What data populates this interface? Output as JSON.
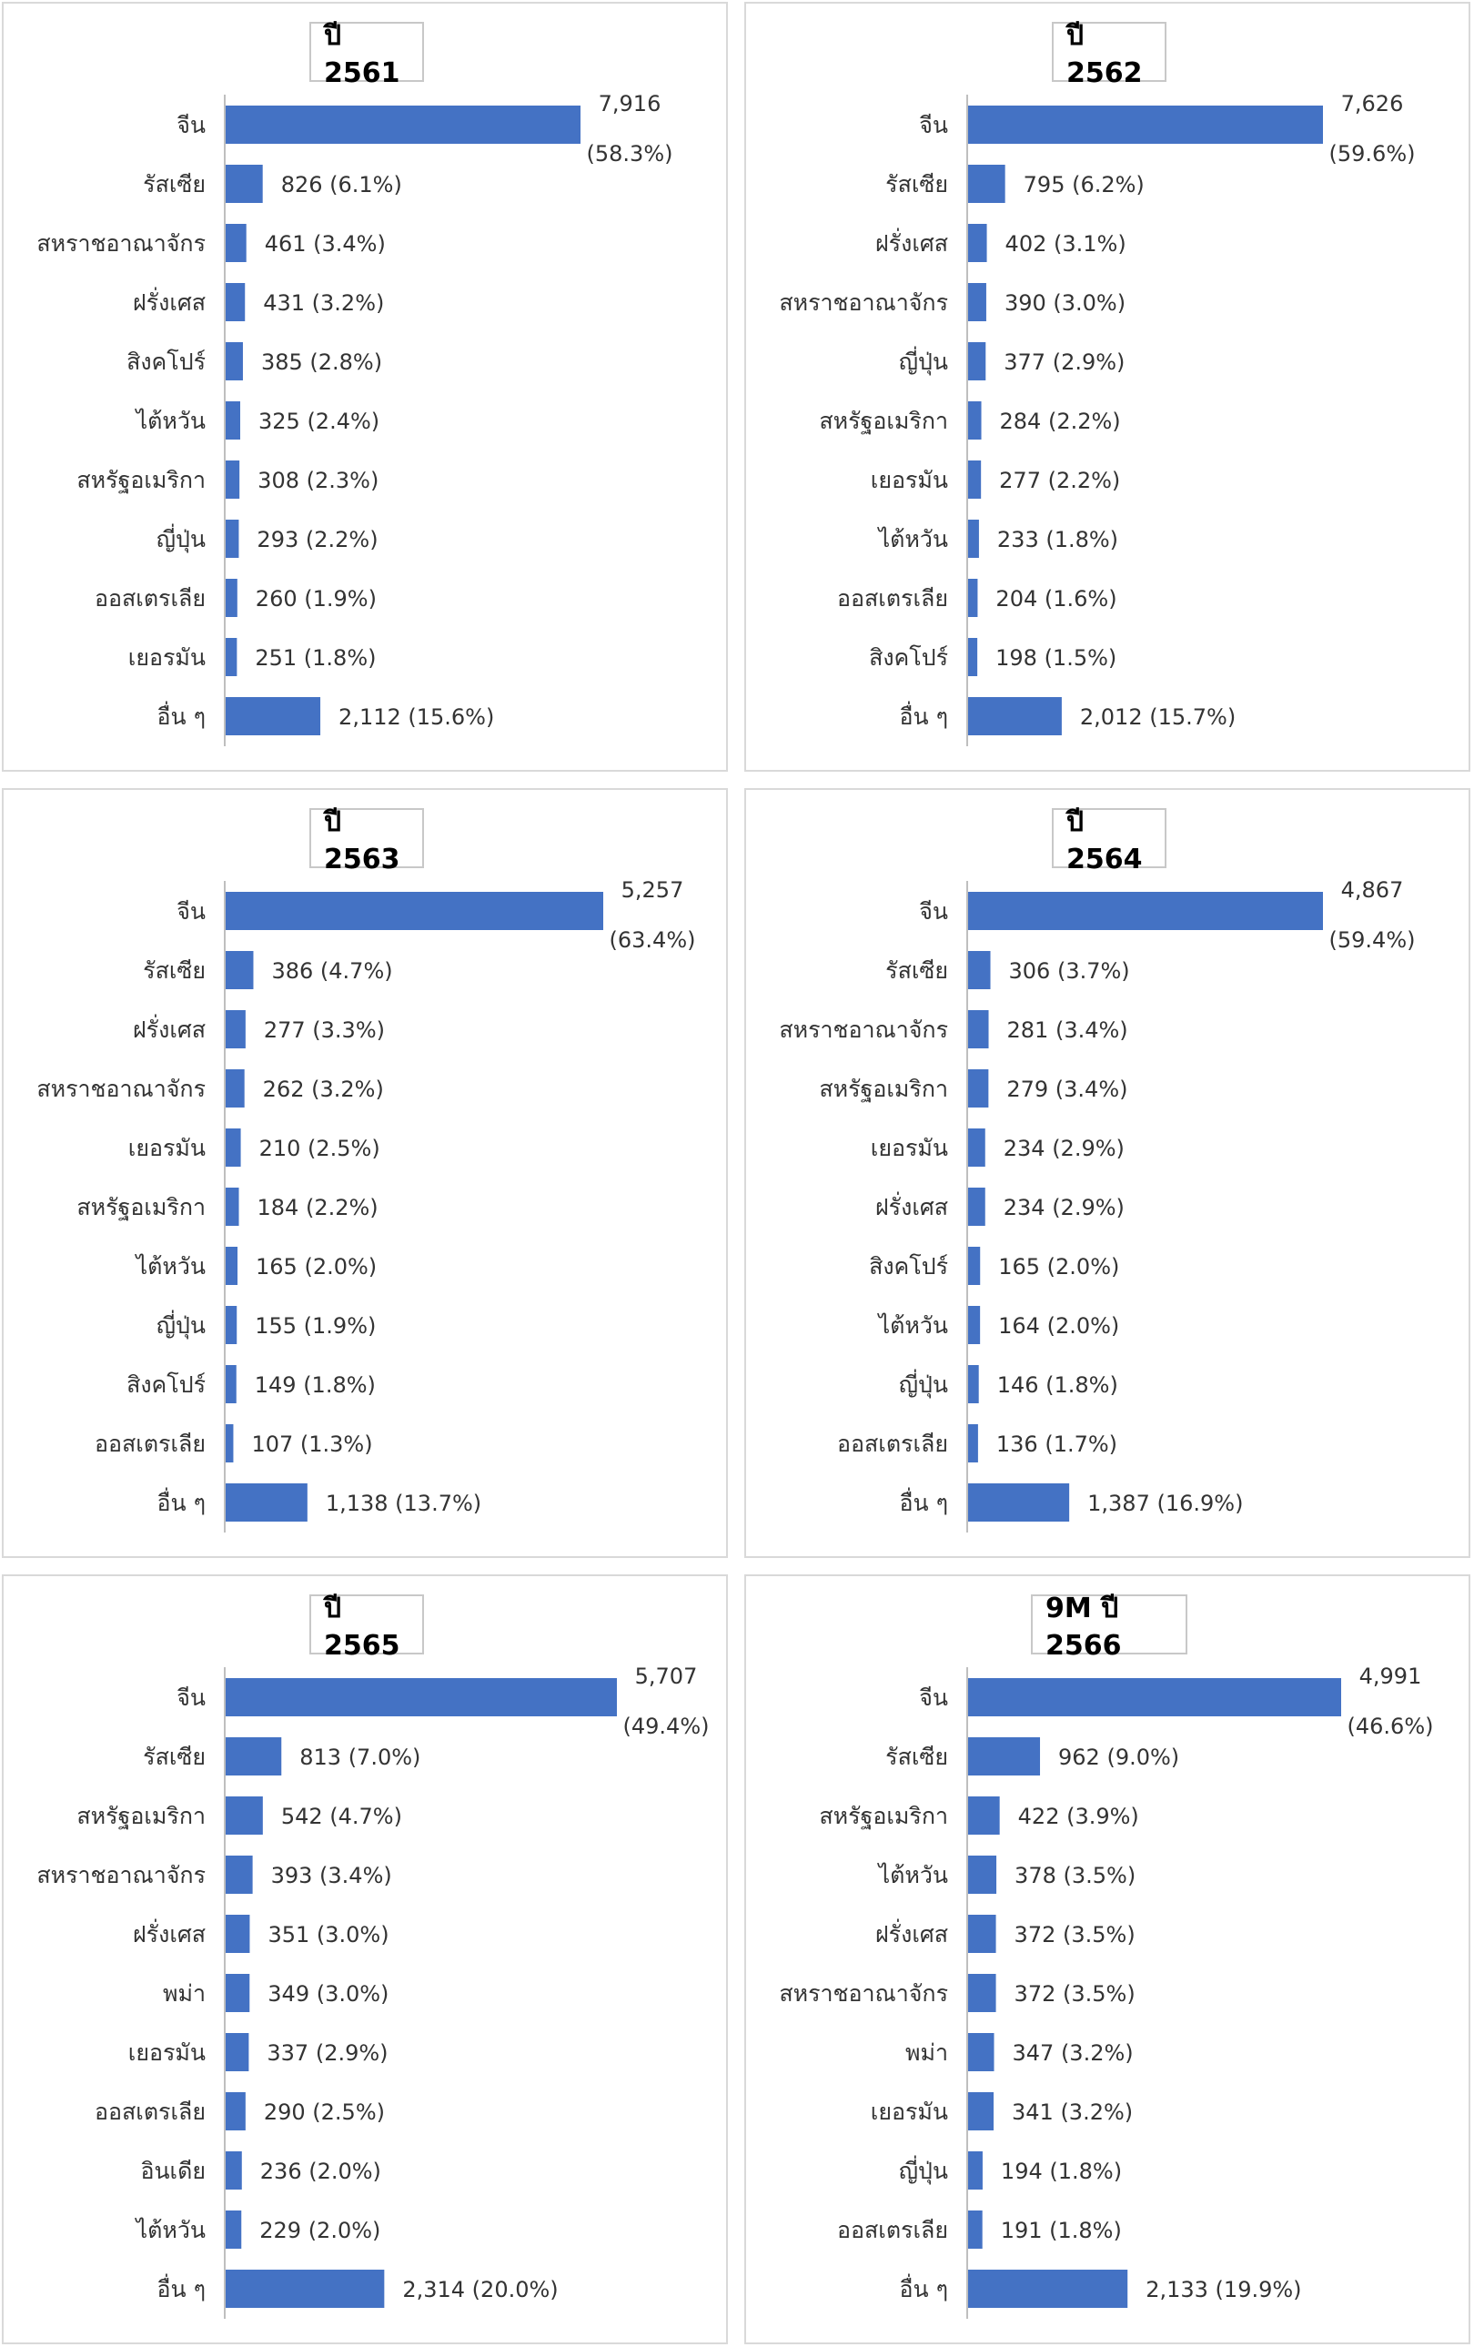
{
  "chart_data": [
    {
      "type": "bar",
      "title": "ปี 2561",
      "categories": [
        "จีน",
        "รัสเซีย",
        "สหราชอาณาจักร",
        "ฝรั่งเศส",
        "สิงคโปร์",
        "ไต้หวัน",
        "สหรัฐอเมริกา",
        "ญี่ปุ่น",
        "ออสเตรเลีย",
        "เยอรมัน",
        "อื่น ๆ"
      ],
      "values": [
        7916,
        826,
        461,
        431,
        385,
        325,
        308,
        293,
        260,
        251,
        2112
      ],
      "labels": [
        "7,916",
        "826 (6.1%)",
        "461 (3.4%)",
        "431 (3.2%)",
        "385 (2.8%)",
        "325 (2.4%)",
        "308 (2.3%)",
        "293 (2.2%)",
        "260 (1.9%)",
        "251 (1.8%)",
        "2,112 (15.6%)"
      ],
      "top_share": "(58.3%)",
      "color": "#4472c4"
    },
    {
      "type": "bar",
      "title": "ปี 2562",
      "categories": [
        "จีน",
        "รัสเซีย",
        "ฝรั่งเศส",
        "สหราชอาณาจักร",
        "ญี่ปุ่น",
        "สหรัฐอเมริกา",
        "เยอรมัน",
        "ไต้หวัน",
        "ออสเตรเลีย",
        "สิงคโปร์",
        "อื่น ๆ"
      ],
      "values": [
        7626,
        795,
        402,
        390,
        377,
        284,
        277,
        233,
        204,
        198,
        2012
      ],
      "labels": [
        "7,626",
        "795 (6.2%)",
        "402 (3.1%)",
        "390 (3.0%)",
        "377 (2.9%)",
        "284 (2.2%)",
        "277 (2.2%)",
        "233 (1.8%)",
        "204 (1.6%)",
        "198 (1.5%)",
        "2,012 (15.7%)"
      ],
      "top_share": "(59.6%)",
      "color": "#4472c4"
    },
    {
      "type": "bar",
      "title": "ปี 2563",
      "categories": [
        "จีน",
        "รัสเซีย",
        "ฝรั่งเศส",
        "สหราชอาณาจักร",
        "เยอรมัน",
        "สหรัฐอเมริกา",
        "ไต้หวัน",
        "ญี่ปุ่น",
        "สิงคโปร์",
        "ออสเตรเลีย",
        "อื่น ๆ"
      ],
      "values": [
        5257,
        386,
        277,
        262,
        210,
        184,
        165,
        155,
        149,
        107,
        1138
      ],
      "labels": [
        "5,257",
        "386 (4.7%)",
        "277 (3.3%)",
        "262 (3.2%)",
        "210 (2.5%)",
        "184 (2.2%)",
        "165 (2.0%)",
        "155 (1.9%)",
        "149 (1.8%)",
        "107 (1.3%)",
        "1,138 (13.7%)"
      ],
      "top_share": "(63.4%)",
      "color": "#4472c4"
    },
    {
      "type": "bar",
      "title": "ปี 2564",
      "categories": [
        "จีน",
        "รัสเซีย",
        "สหราชอาณาจักร",
        "สหรัฐอเมริกา",
        "เยอรมัน",
        "ฝรั่งเศส",
        "สิงคโปร์",
        "ไต้หวัน",
        "ญี่ปุ่น",
        "ออสเตรเลีย",
        "อื่น ๆ"
      ],
      "values": [
        4867,
        306,
        281,
        279,
        234,
        234,
        165,
        164,
        146,
        136,
        1387
      ],
      "labels": [
        "4,867",
        "306 (3.7%)",
        "281 (3.4%)",
        "279 (3.4%)",
        "234 (2.9%)",
        "234 (2.9%)",
        "165 (2.0%)",
        "164 (2.0%)",
        "146 (1.8%)",
        "136 (1.7%)",
        "1,387 (16.9%)"
      ],
      "top_share": "(59.4%)",
      "color": "#4472c4"
    },
    {
      "type": "bar",
      "title": "ปี 2565",
      "categories": [
        "จีน",
        "รัสเซีย",
        "สหรัฐอเมริกา",
        "สหราชอาณาจักร",
        "ฝรั่งเศส",
        "พม่า",
        "เยอรมัน",
        "ออสเตรเลีย",
        "อินเดีย",
        "ไต้หวัน",
        "อื่น ๆ"
      ],
      "values": [
        5707,
        813,
        542,
        393,
        351,
        349,
        337,
        290,
        236,
        229,
        2314
      ],
      "labels": [
        "5,707",
        "813 (7.0%)",
        "542 (4.7%)",
        "393 (3.4%)",
        "351 (3.0%)",
        "349 (3.0%)",
        "337 (2.9%)",
        "290 (2.5%)",
        "236 (2.0%)",
        "229 (2.0%)",
        "2,314 (20.0%)"
      ],
      "top_share": "(49.4%)",
      "color": "#4472c4"
    },
    {
      "type": "bar",
      "title": "9M ปี 2566",
      "categories": [
        "จีน",
        "รัสเซีย",
        "สหรัฐอเมริกา",
        "ไต้หวัน",
        "ฝรั่งเศส",
        "สหราชอาณาจักร",
        "พม่า",
        "เยอรมัน",
        "ญี่ปุ่น",
        "ออสเตรเลีย",
        "อื่น ๆ"
      ],
      "values": [
        4991,
        962,
        422,
        378,
        372,
        372,
        347,
        341,
        194,
        191,
        2133
      ],
      "labels": [
        "4,991",
        "962 (9.0%)",
        "422 (3.9%)",
        "378 (3.5%)",
        "372 (3.5%)",
        "372 (3.5%)",
        "347 (3.2%)",
        "341 (3.2%)",
        "194 (1.8%)",
        "191 (1.8%)",
        "2,133 (19.9%)"
      ],
      "top_share": "(46.6%)",
      "color": "#4472c4"
    }
  ]
}
